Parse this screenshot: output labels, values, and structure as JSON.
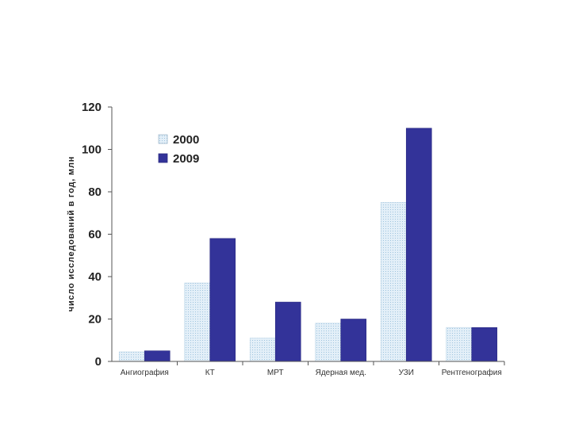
{
  "chart_data": {
    "type": "bar",
    "ylabel": "число исследований в год, млн",
    "ylim": [
      0,
      120
    ],
    "yticks": [
      0,
      20,
      40,
      60,
      80,
      100,
      120
    ],
    "categories": [
      "Ангиография",
      "КТ",
      "МРТ",
      "Ядерная мед.",
      "УЗИ",
      "Рентгенография"
    ],
    "series": [
      {
        "name": "2000",
        "values": [
          4.5,
          37,
          11,
          18,
          75,
          16
        ],
        "color": "#d6e8f4"
      },
      {
        "name": "2009",
        "values": [
          5,
          58,
          28,
          20,
          110,
          16
        ],
        "color": "#333399"
      }
    ],
    "legend": "top-left",
    "grid": false
  }
}
